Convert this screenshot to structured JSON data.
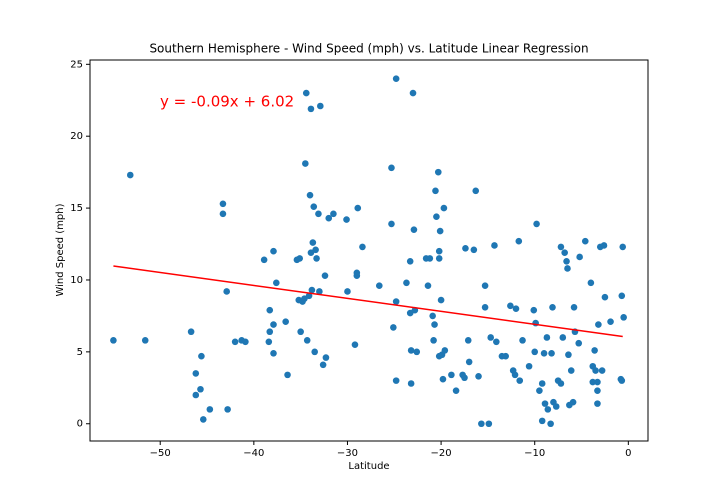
{
  "chart_data": {
    "type": "scatter",
    "title": "Southern Hemisphere - Wind Speed (mph) vs. Latitude Linear Regression",
    "x_label": "Latitude",
    "y_label": "Wind Speed (mph)",
    "annotation": "y = -0.09x + 6.02",
    "xlim": [
      -57.5,
      2.1
    ],
    "ylim": [
      -1.2,
      25.3
    ],
    "xticks": [
      {
        "value": -50,
        "label": "−50"
      },
      {
        "value": -40,
        "label": "−40"
      },
      {
        "value": -30,
        "label": "−30"
      },
      {
        "value": -20,
        "label": "−20"
      },
      {
        "value": -10,
        "label": "−10"
      },
      0
    ],
    "yticks": [
      0,
      5,
      10,
      15,
      20,
      25
    ],
    "series": [
      {
        "color": "#1f77b4",
        "x": [
          -55,
          -53.2,
          -51.6,
          -46.7,
          -46.2,
          -46.2,
          -45.7,
          -45.6,
          -45.4,
          -44.7,
          -43.3,
          -43.3,
          -42.9,
          -42.8,
          -42,
          -41.3,
          -40.9,
          -38.9,
          -38.3,
          -38.3,
          -38.4,
          -37.9,
          -37.9,
          -37.9,
          -37.6,
          -36.6,
          -36.4,
          -35.4,
          -35.1,
          -35.2,
          -35,
          -34.8,
          -34.6,
          -34.5,
          -34.4,
          -34.3,
          -34.1,
          -34,
          -33.9,
          -33.9,
          -33.8,
          -33.7,
          -33.6,
          -33.4,
          -33.5,
          -33.3,
          -33.1,
          -33,
          -32.9,
          -32.6,
          -32.4,
          -32.3,
          -32,
          -31.5,
          -30.1,
          -30,
          -29.2,
          -29,
          -29,
          -28.9,
          -28.4,
          -26.6,
          -25.3,
          -25.3,
          -25.1,
          -24.8,
          -24.8,
          -24.8,
          -23.7,
          -23.3,
          -23.3,
          -23.2,
          -23.2,
          -23,
          -22.9,
          -22.8,
          -22.6,
          -21.6,
          -21.4,
          -21.2,
          -20.9,
          -20.8,
          -20.7,
          -20.6,
          -20.5,
          -20.3,
          -20.2,
          -20.2,
          -20.2,
          -20.1,
          -20,
          -19.9,
          -19.8,
          -19.7,
          -19.6,
          -18.9,
          -18.4,
          -17.7,
          -17.5,
          -17.4,
          -17.1,
          -17,
          -16.5,
          -16.3,
          -16,
          -15.7,
          -15.3,
          -15.3,
          -14.9,
          -14.7,
          -14.3,
          -14.1,
          -13.5,
          -13.1,
          -12.6,
          -12.3,
          -12.1,
          -12,
          -11.7,
          -11.6,
          -11.3,
          -10.6,
          -10.1,
          -10,
          -9.9,
          -9.8,
          -9.5,
          -9.2,
          -9.2,
          -9,
          -8.9,
          -8.7,
          -8.6,
          -8.3,
          -8.2,
          -8.1,
          -8,
          -7.7,
          -7.5,
          -7.2,
          -7.2,
          -7,
          -6.8,
          -6.6,
          -6.5,
          -6.4,
          -6.3,
          -6.1,
          -5.9,
          -5.8,
          -5.7,
          -5.3,
          -5.2,
          -4.6,
          -4,
          -3.8,
          -3.8,
          -3.6,
          -3.5,
          -3.3,
          -3.3,
          -3.3,
          -3.2,
          -3,
          -2.8,
          -2.6,
          -2.5,
          -1.9,
          -0.8,
          -0.7,
          -0.7,
          -0.6,
          -0.5
        ],
        "values": [
          5.8,
          17.3,
          5.8,
          6.4,
          3.5,
          2,
          2.4,
          4.7,
          0.3,
          1,
          15.3,
          14.6,
          9.2,
          1,
          5.7,
          5.8,
          5.7,
          11.4,
          7.9,
          6.4,
          5.7,
          6.9,
          12,
          4.9,
          9.8,
          7.1,
          3.4,
          11.4,
          11.5,
          8.6,
          6.4,
          8.5,
          8.7,
          18.1,
          23,
          5.8,
          8.9,
          15.9,
          11.9,
          21.9,
          9.3,
          12.6,
          15.1,
          12.1,
          5,
          11.5,
          14.6,
          9.2,
          22.1,
          4.1,
          10.3,
          4.6,
          14.3,
          14.6,
          14.2,
          9.2,
          5.5,
          10.3,
          10.5,
          15,
          12.3,
          9.6,
          17.8,
          13.9,
          6.7,
          3,
          24,
          8.5,
          9.8,
          11.3,
          7.7,
          5.1,
          2.8,
          23,
          13.5,
          7.9,
          5,
          11.5,
          9.6,
          11.5,
          7.5,
          5.8,
          6.9,
          16.2,
          14.4,
          17.5,
          11.5,
          12,
          4.7,
          13.4,
          8.6,
          4.8,
          3.1,
          15,
          5.1,
          3.4,
          2.3,
          3.4,
          3.2,
          12.2,
          5.8,
          4.3,
          12.1,
          16.2,
          3.3,
          0,
          8.1,
          9.6,
          0,
          6,
          12.4,
          5.7,
          4.7,
          4.7,
          8.2,
          3.7,
          3.4,
          8,
          12.7,
          3,
          5.8,
          4,
          7.9,
          5,
          7,
          13.9,
          2.3,
          2.8,
          0.2,
          4.9,
          1.4,
          6,
          1,
          0,
          4.9,
          8.1,
          1.5,
          1.2,
          3,
          2.8,
          12.3,
          6,
          11.9,
          11.3,
          10.8,
          4.8,
          1.3,
          3.7,
          1.5,
          8.1,
          6.4,
          5.6,
          11.6,
          12.7,
          9.8,
          4,
          2.9,
          5.1,
          3.7,
          1.4,
          2.3,
          2.9,
          6.9,
          12.3,
          3.7,
          12.4,
          8.8,
          7.1,
          3.1,
          3,
          8.9,
          12.3,
          7.4
        ]
      }
    ],
    "regression": {
      "color": "red",
      "x": [
        -55,
        -0.6
      ],
      "values": [
        10.97,
        6.07
      ]
    }
  }
}
